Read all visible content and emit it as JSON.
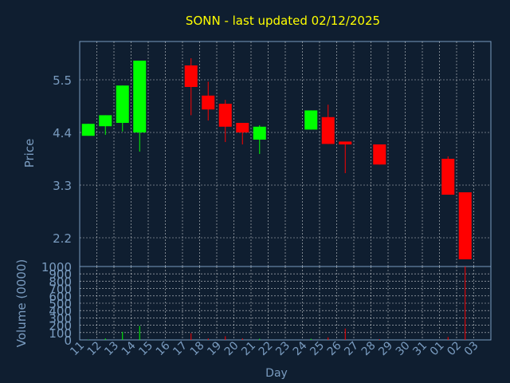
{
  "colors": {
    "background": "#0f1e30",
    "axis_text": "#7a9cc0",
    "title": "#ffff00",
    "grid": "#ffffff",
    "up": "#00ff00",
    "down": "#ff0000"
  },
  "chart_data": [
    {
      "type": "candlestick",
      "title": "SONN - last updated 02/12/2025",
      "ylabel": "Price",
      "ylim": [
        1.6,
        6.3
      ],
      "yticks": [
        "5.5",
        "4.4",
        "3.3",
        "2.2"
      ],
      "ytick_values": [
        5.5,
        4.4,
        3.3,
        2.2
      ],
      "grid": true,
      "candles": [
        {
          "day": "11",
          "open": 4.33,
          "close": 4.58,
          "high": 4.58,
          "low": 4.33
        },
        {
          "day": "12",
          "open": 4.53,
          "close": 4.76,
          "high": 4.76,
          "low": 4.35
        },
        {
          "day": "13",
          "open": 4.6,
          "close": 5.38,
          "high": 5.38,
          "low": 4.42
        },
        {
          "day": "14",
          "open": 4.4,
          "close": 5.9,
          "high": 5.9,
          "low": 4.0
        },
        {
          "day": "17",
          "open": 5.8,
          "close": 5.35,
          "high": 5.95,
          "low": 4.76
        },
        {
          "day": "18",
          "open": 5.17,
          "close": 4.88,
          "high": 5.46,
          "low": 4.65
        },
        {
          "day": "19",
          "open": 5.0,
          "close": 4.52,
          "high": 5.08,
          "low": 4.2
        },
        {
          "day": "20",
          "open": 4.6,
          "close": 4.4,
          "high": 4.6,
          "low": 4.15
        },
        {
          "day": "21",
          "open": 4.25,
          "close": 4.52,
          "high": 4.55,
          "low": 3.95
        },
        {
          "day": "24",
          "open": 4.46,
          "close": 4.86,
          "high": 4.86,
          "low": 4.46
        },
        {
          "day": "25",
          "open": 4.72,
          "close": 4.16,
          "high": 4.98,
          "low": 4.16
        },
        {
          "day": "26",
          "open": 4.21,
          "close": 4.15,
          "high": 4.21,
          "low": 3.55
        },
        {
          "day": "28",
          "open": 4.15,
          "close": 3.73,
          "high": 4.15,
          "low": 3.73
        },
        {
          "day": "01",
          "open": 3.85,
          "close": 3.1,
          "high": 3.9,
          "low": 3.1
        },
        {
          "day": "02",
          "open": 3.15,
          "close": 1.75,
          "high": 3.15,
          "low": 1.75
        }
      ]
    },
    {
      "type": "bar",
      "ylabel": "Volume (0000)",
      "xlabel": "Day",
      "ylim": [
        0,
        1000
      ],
      "yticks": [
        "1000",
        "900",
        "800",
        "700",
        "600",
        "500",
        "400",
        "300",
        "200",
        "100",
        "0"
      ],
      "ytick_values": [
        1000,
        900,
        800,
        700,
        600,
        500,
        400,
        300,
        200,
        100,
        0
      ],
      "categories": [
        "11",
        "12",
        "13",
        "14",
        "15",
        "16",
        "17",
        "18",
        "19",
        "20",
        "21",
        "22",
        "23",
        "24",
        "25",
        "26",
        "27",
        "28",
        "29",
        "30",
        "31",
        "01",
        "02",
        "03"
      ],
      "volumes": [
        {
          "day": "11",
          "value": 5,
          "dir": "up"
        },
        {
          "day": "12",
          "value": 20,
          "dir": "up"
        },
        {
          "day": "13",
          "value": 110,
          "dir": "up"
        },
        {
          "day": "14",
          "value": 190,
          "dir": "up"
        },
        {
          "day": "17",
          "value": 90,
          "dir": "down"
        },
        {
          "day": "18",
          "value": 20,
          "dir": "down"
        },
        {
          "day": "19",
          "value": 50,
          "dir": "down"
        },
        {
          "day": "20",
          "value": 20,
          "dir": "down"
        },
        {
          "day": "21",
          "value": 15,
          "dir": "up"
        },
        {
          "day": "24",
          "value": 15,
          "dir": "up"
        },
        {
          "day": "25",
          "value": 35,
          "dir": "down"
        },
        {
          "day": "26",
          "value": 155,
          "dir": "down"
        },
        {
          "day": "28",
          "value": 10,
          "dir": "down"
        },
        {
          "day": "01",
          "value": 40,
          "dir": "down"
        },
        {
          "day": "02",
          "value": 1000,
          "dir": "down"
        }
      ]
    }
  ]
}
